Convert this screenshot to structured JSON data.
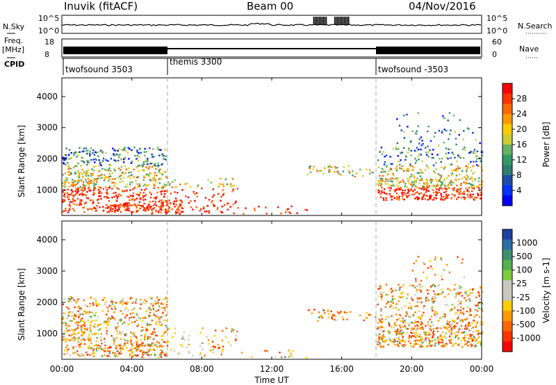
{
  "header": {
    "station": "Inuvik (fitACF)",
    "beam": "Beam 00",
    "date": "04/Nov/2016"
  },
  "side_labels": {
    "nsky": "N.Sky",
    "freq_top": "Freq.",
    "freq_unit": "[MHz]",
    "cpid": "CPID",
    "nsearch": "N.Search",
    "nave": "Nave"
  },
  "noise_panel": {
    "left_ticks": [
      "10^5",
      "10^0"
    ],
    "right_ticks": [
      "10^5",
      "10^0"
    ]
  },
  "freq_panel": {
    "left_ticks": [
      "18",
      "8"
    ],
    "right_ticks": [
      "60",
      "0"
    ]
  },
  "cpid_panel": {
    "segments": [
      "twofsound 3503",
      "themis 3300",
      "twofsound -3503"
    ]
  },
  "x_axis": {
    "title": "Time UT",
    "ticks": [
      "00:00",
      "04:00",
      "08:00",
      "12:00",
      "16:00",
      "20:00",
      "00:00"
    ]
  },
  "power_panel": {
    "ylabel": "Slant Range [km]",
    "y_ticks": [
      "4000",
      "3000",
      "2000",
      "1000"
    ],
    "colorbar_label": "Power [dB]",
    "colorbar_ticks": [
      "28",
      "24",
      "20",
      "16",
      "12",
      "8",
      "4"
    ],
    "colorbar_colors": [
      "#ff0000",
      "#ff3300",
      "#ff6600",
      "#ff9900",
      "#ffcc00",
      "#cccc33",
      "#66b266",
      "#339966",
      "#2e7d6e",
      "#1f4fa8",
      "#0033ff",
      "#0000ff"
    ]
  },
  "velocity_panel": {
    "ylabel": "Slant Range [km]",
    "y_ticks": [
      "4000",
      "3000",
      "2000",
      "1000"
    ],
    "colorbar_label": "Velocity [m s-1]",
    "colorbar_ticks": [
      "1000",
      "500",
      "100",
      "25",
      "-25",
      "-100",
      "-500",
      "-1000"
    ],
    "colorbar_colors": [
      "#2040a0",
      "#2f6fa8",
      "#3f8f6f",
      "#55b050",
      "#80cc40",
      "#c8c8c0",
      "#c8c8c0",
      "#ffcc00",
      "#ff9900",
      "#ff6600",
      "#ff3300",
      "#ff0000"
    ]
  },
  "chart_data": [
    {
      "type": "line",
      "title": "N.Sky / N.Search noise",
      "x_range_hours": [
        0,
        24
      ],
      "note": "sky noise approximately constant, bursts near 14:30-16:30 UT",
      "ylim": [
        "10^0",
        "10^5"
      ]
    },
    {
      "type": "line",
      "title": "Freq. / Nave",
      "ylim_freq_mhz": [
        8,
        18
      ],
      "ylim_nave": [
        0,
        60
      ]
    },
    {
      "type": "table",
      "title": "CPID",
      "segments": [
        {
          "name": "twofsound 3503",
          "start_hour": 0,
          "end_hour": 6
        },
        {
          "name": "themis 3300",
          "start_hour": 6,
          "end_hour": 18
        },
        {
          "name": "twofsound -3503",
          "start_hour": 18,
          "end_hour": 24
        }
      ]
    },
    {
      "type": "heatmap",
      "quantity": "Power [dB]",
      "x_range_hours": [
        0,
        24
      ],
      "y_range_km": [
        180,
        4600
      ],
      "colorbar_range": [
        0,
        32
      ]
    },
    {
      "type": "heatmap",
      "quantity": "Velocity [m s-1]",
      "x_range_hours": [
        0,
        24
      ],
      "y_range_km": [
        180,
        4600
      ],
      "colorbar_range": [
        -1000,
        1000
      ]
    }
  ]
}
